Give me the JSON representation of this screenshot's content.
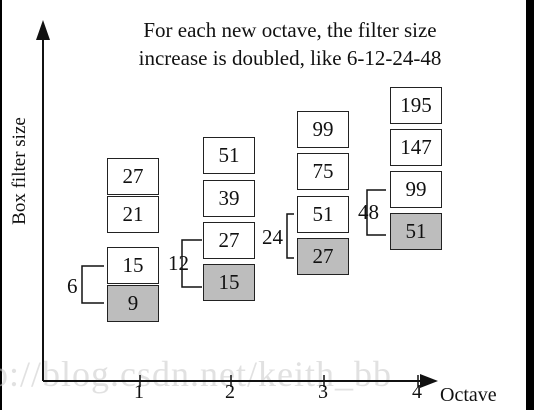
{
  "caption_line1": "For each new octave, the filter size",
  "caption_line2": "increase is doubled, like 6-12-24-48",
  "y_axis_label": "Box filter size",
  "x_axis_label": "Octave",
  "watermark": "p://blog.csdn.net/keith_bb",
  "octaves": [
    {
      "tick": "1",
      "boxes": [
        "27",
        "21",
        "15",
        "9"
      ],
      "shaded": "9",
      "step": "6"
    },
    {
      "tick": "2",
      "boxes": [
        "51",
        "39",
        "27",
        "15"
      ],
      "shaded": "15",
      "step": "12"
    },
    {
      "tick": "3",
      "boxes": [
        "99",
        "75",
        "51",
        "27"
      ],
      "shaded": "27",
      "step": "24"
    },
    {
      "tick": "4",
      "boxes": [
        "195",
        "147",
        "99",
        "51"
      ],
      "shaded": "51",
      "step": "48"
    }
  ],
  "colors": {
    "shaded_box": "#bdbdbd",
    "stroke": "#222222"
  }
}
